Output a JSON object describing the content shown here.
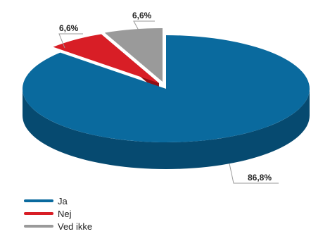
{
  "chart_data": {
    "type": "pie",
    "slices": [
      {
        "name": "Ja",
        "value": 86.8,
        "label": "86,8%",
        "color": "#0a6a9e",
        "side_color": "#064a70"
      },
      {
        "name": "Nej",
        "value": 6.6,
        "label": "6,6%",
        "color": "#d81e26",
        "side_color": "#8f1015"
      },
      {
        "name": "Ved ikke",
        "value": 6.6,
        "label": "6,6%",
        "color": "#9a9a9a",
        "side_color": "#666666"
      }
    ],
    "legend": {
      "position": "bottom-left"
    },
    "style": "3d-pie"
  }
}
